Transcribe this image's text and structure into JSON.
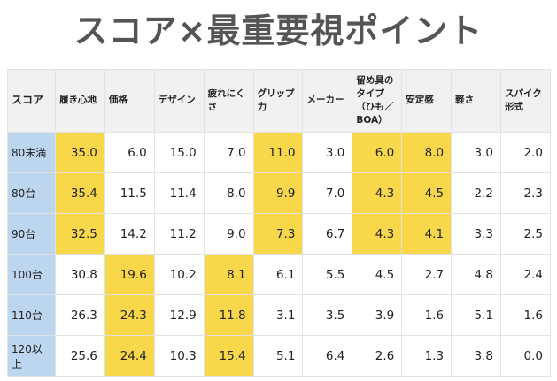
{
  "header": {
    "title": "スコア×最重要視ポイント"
  },
  "table": {
    "columns": [
      "スコア",
      "履き心地",
      "価格",
      "デザイン",
      "疲れにくさ",
      "グリップ力",
      "メーカー",
      "留め具のタイプ（ひも／BOA）",
      "安定感",
      "軽さ",
      "スパイク形式"
    ],
    "rows": [
      [
        "80未満",
        "35.0",
        "6.0",
        "15.0",
        "7.0",
        "11.0",
        "3.0",
        "6.0",
        "8.0",
        "3.0",
        "2.0"
      ],
      [
        "80台",
        "35.4",
        "11.5",
        "11.4",
        "8.0",
        "9.9",
        "7.0",
        "4.3",
        "4.5",
        "2.2",
        "2.3"
      ],
      [
        "90台",
        "32.5",
        "14.2",
        "11.2",
        "9.0",
        "7.3",
        "6.7",
        "4.3",
        "4.1",
        "3.3",
        "2.5"
      ],
      [
        "100台",
        "30.8",
        "19.6",
        "10.2",
        "8.1",
        "6.1",
        "5.5",
        "4.5",
        "2.7",
        "4.8",
        "2.4"
      ],
      [
        "110台",
        "26.3",
        "24.3",
        "12.9",
        "11.8",
        "3.1",
        "3.5",
        "3.9",
        "1.6",
        "5.1",
        "1.6"
      ],
      [
        "120以上",
        "25.6",
        "24.4",
        "10.3",
        "15.4",
        "5.1",
        "6.4",
        "2.6",
        "1.3",
        "3.8",
        "0.0"
      ]
    ]
  }
}
